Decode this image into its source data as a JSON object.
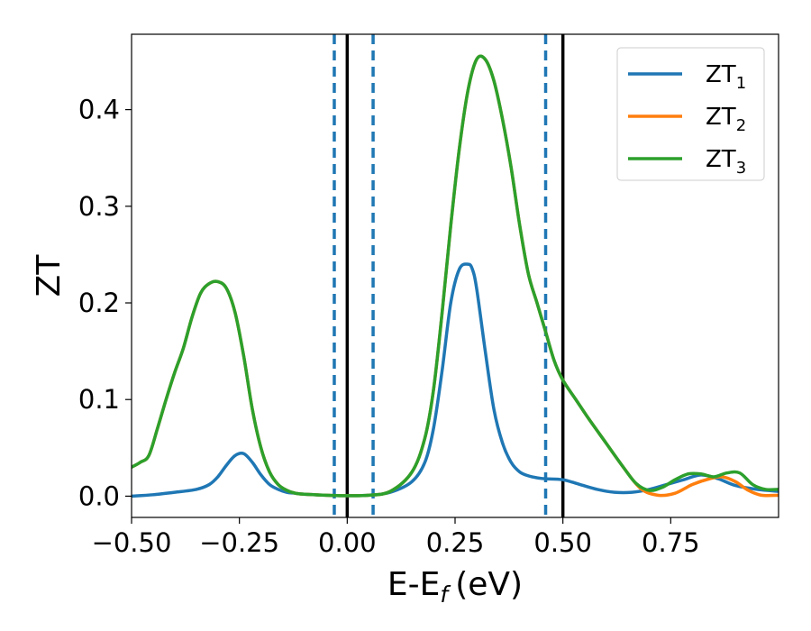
{
  "chart_data": {
    "type": "line",
    "xlabel": "E-E",
    "xlabel_sub": "f",
    "xlabel_unit": "(eV)",
    "ylabel": "ZT",
    "xlim": [
      -0.5,
      1.0
    ],
    "ylim": [
      -0.022,
      0.478
    ],
    "xticks": [
      -0.5,
      -0.25,
      0.0,
      0.25,
      0.5,
      0.75
    ],
    "xtick_labels": [
      "−0.50",
      "−0.25",
      "0.00",
      "0.25",
      "0.50",
      "0.75"
    ],
    "yticks": [
      0.0,
      0.1,
      0.2,
      0.3,
      0.4
    ],
    "ytick_labels": [
      "0.0",
      "0.1",
      "0.2",
      "0.3",
      "0.4"
    ],
    "grid": false,
    "legend_position": "top-right",
    "series": [
      {
        "name": "ZT",
        "name_sub": "1",
        "color": "#1f77b4",
        "x": [
          -0.5,
          -0.45,
          -0.4,
          -0.35,
          -0.32,
          -0.3,
          -0.28,
          -0.26,
          -0.24,
          -0.22,
          -0.2,
          -0.18,
          -0.16,
          -0.14,
          -0.12,
          -0.1,
          -0.05,
          0.0,
          0.05,
          0.1,
          0.15,
          0.18,
          0.2,
          0.22,
          0.24,
          0.26,
          0.28,
          0.29,
          0.3,
          0.32,
          0.34,
          0.36,
          0.38,
          0.4,
          0.42,
          0.44,
          0.46,
          0.5,
          0.54,
          0.58,
          0.62,
          0.66,
          0.7,
          0.74,
          0.78,
          0.82,
          0.86,
          0.9,
          0.95,
          1.0
        ],
        "y": [
          0.0,
          0.0015,
          0.004,
          0.007,
          0.012,
          0.02,
          0.032,
          0.042,
          0.044,
          0.035,
          0.022,
          0.012,
          0.007,
          0.004,
          0.003,
          0.002,
          0.001,
          0.0005,
          0.001,
          0.004,
          0.015,
          0.035,
          0.07,
          0.13,
          0.2,
          0.235,
          0.24,
          0.235,
          0.215,
          0.15,
          0.09,
          0.055,
          0.035,
          0.025,
          0.021,
          0.019,
          0.018,
          0.017,
          0.012,
          0.007,
          0.004,
          0.004,
          0.007,
          0.012,
          0.017,
          0.022,
          0.018,
          0.011,
          0.007,
          0.005
        ]
      },
      {
        "name": "ZT",
        "name_sub": "2",
        "color": "#ff7f0e",
        "x": [
          -0.5,
          -0.48,
          -0.46,
          -0.44,
          -0.42,
          -0.4,
          -0.38,
          -0.36,
          -0.34,
          -0.32,
          -0.3,
          -0.28,
          -0.26,
          -0.24,
          -0.22,
          -0.2,
          -0.18,
          -0.16,
          -0.14,
          -0.12,
          -0.1,
          -0.05,
          0.0,
          0.05,
          0.1,
          0.15,
          0.18,
          0.2,
          0.22,
          0.24,
          0.26,
          0.28,
          0.3,
          0.32,
          0.34,
          0.36,
          0.38,
          0.4,
          0.42,
          0.44,
          0.46,
          0.48,
          0.5,
          0.53,
          0.56,
          0.6,
          0.64,
          0.68,
          0.72,
          0.76,
          0.8,
          0.84,
          0.87,
          0.9,
          0.93,
          0.96,
          1.0
        ],
        "y": [
          0.03,
          0.035,
          0.042,
          0.07,
          0.1,
          0.128,
          0.153,
          0.185,
          0.21,
          0.22,
          0.222,
          0.215,
          0.19,
          0.145,
          0.09,
          0.05,
          0.025,
          0.012,
          0.006,
          0.003,
          0.002,
          0.001,
          0.0005,
          0.001,
          0.005,
          0.025,
          0.06,
          0.11,
          0.19,
          0.28,
          0.36,
          0.42,
          0.452,
          0.452,
          0.43,
          0.39,
          0.34,
          0.28,
          0.23,
          0.2,
          0.17,
          0.14,
          0.12,
          0.1,
          0.08,
          0.055,
          0.03,
          0.008,
          0.001,
          0.003,
          0.012,
          0.018,
          0.02,
          0.015,
          0.006,
          0.001,
          0.001
        ]
      },
      {
        "name": "ZT",
        "name_sub": "3",
        "color": "#2ca02c",
        "x": [
          -0.5,
          -0.48,
          -0.46,
          -0.44,
          -0.42,
          -0.4,
          -0.38,
          -0.36,
          -0.34,
          -0.32,
          -0.3,
          -0.28,
          -0.26,
          -0.24,
          -0.22,
          -0.2,
          -0.18,
          -0.16,
          -0.14,
          -0.12,
          -0.1,
          -0.05,
          0.0,
          0.05,
          0.1,
          0.15,
          0.18,
          0.2,
          0.22,
          0.24,
          0.26,
          0.28,
          0.3,
          0.32,
          0.34,
          0.36,
          0.38,
          0.4,
          0.42,
          0.44,
          0.46,
          0.48,
          0.5,
          0.53,
          0.56,
          0.6,
          0.64,
          0.67,
          0.7,
          0.73,
          0.76,
          0.79,
          0.82,
          0.85,
          0.88,
          0.91,
          0.94,
          0.97,
          1.0
        ],
        "y": [
          0.03,
          0.035,
          0.042,
          0.07,
          0.1,
          0.128,
          0.153,
          0.185,
          0.21,
          0.22,
          0.222,
          0.215,
          0.19,
          0.145,
          0.09,
          0.05,
          0.025,
          0.012,
          0.006,
          0.003,
          0.002,
          0.001,
          0.0005,
          0.001,
          0.005,
          0.025,
          0.06,
          0.11,
          0.19,
          0.28,
          0.36,
          0.42,
          0.452,
          0.452,
          0.43,
          0.39,
          0.34,
          0.28,
          0.23,
          0.2,
          0.17,
          0.14,
          0.12,
          0.1,
          0.08,
          0.055,
          0.03,
          0.013,
          0.006,
          0.009,
          0.017,
          0.023,
          0.023,
          0.02,
          0.024,
          0.024,
          0.012,
          0.007,
          0.007
        ]
      }
    ],
    "vlines": [
      {
        "x": -0.03,
        "style": "dashed",
        "color": "#1f77b4"
      },
      {
        "x": 0.0,
        "style": "solid",
        "color": "#000000"
      },
      {
        "x": 0.06,
        "style": "dashed",
        "color": "#1f77b4"
      },
      {
        "x": 0.46,
        "style": "dashed",
        "color": "#1f77b4"
      },
      {
        "x": 0.5,
        "style": "solid",
        "color": "#000000"
      }
    ]
  }
}
